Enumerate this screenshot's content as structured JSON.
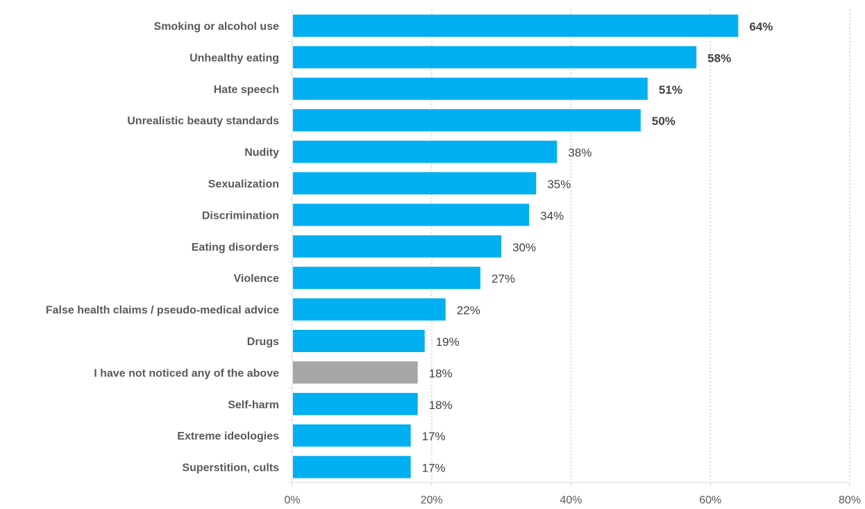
{
  "chart_data": {
    "type": "bar",
    "orientation": "horizontal",
    "categories": [
      "Smoking or alcohol use",
      "Unhealthy eating",
      "Hate speech",
      "Unrealistic beauty standards",
      "Nudity",
      "Sexualization",
      "Discrimination",
      "Eating disorders",
      "Violence",
      "False health claims / pseudo-medical advice",
      "Drugs",
      "I have not noticed any of the above",
      "Self-harm",
      "Extreme ideologies",
      "Superstition, cults"
    ],
    "values": [
      64,
      58,
      51,
      50,
      38,
      35,
      34,
      30,
      27,
      22,
      19,
      18,
      18,
      17,
      17
    ],
    "value_labels": [
      "64%",
      "58%",
      "51%",
      "50%",
      "38%",
      "35%",
      "34%",
      "30%",
      "27%",
      "22%",
      "19%",
      "18%",
      "18%",
      "17%",
      "17%"
    ],
    "bold_labels": [
      true,
      true,
      true,
      true,
      false,
      false,
      false,
      false,
      false,
      false,
      false,
      false,
      false,
      false,
      false
    ],
    "bar_colors": [
      "#00B0F0",
      "#00B0F0",
      "#00B0F0",
      "#00B0F0",
      "#00B0F0",
      "#00B0F0",
      "#00B0F0",
      "#00B0F0",
      "#00B0F0",
      "#00B0F0",
      "#00B0F0",
      "#A6A6A6",
      "#00B0F0",
      "#00B0F0",
      "#00B0F0"
    ],
    "xlim": [
      0,
      80
    ],
    "xticks": [
      0,
      20,
      40,
      60,
      80
    ],
    "xtick_labels": [
      "0%",
      "20%",
      "40%",
      "60%",
      "80%"
    ],
    "grid": "vertical-dotted",
    "title": "",
    "xlabel": "",
    "ylabel": ""
  }
}
